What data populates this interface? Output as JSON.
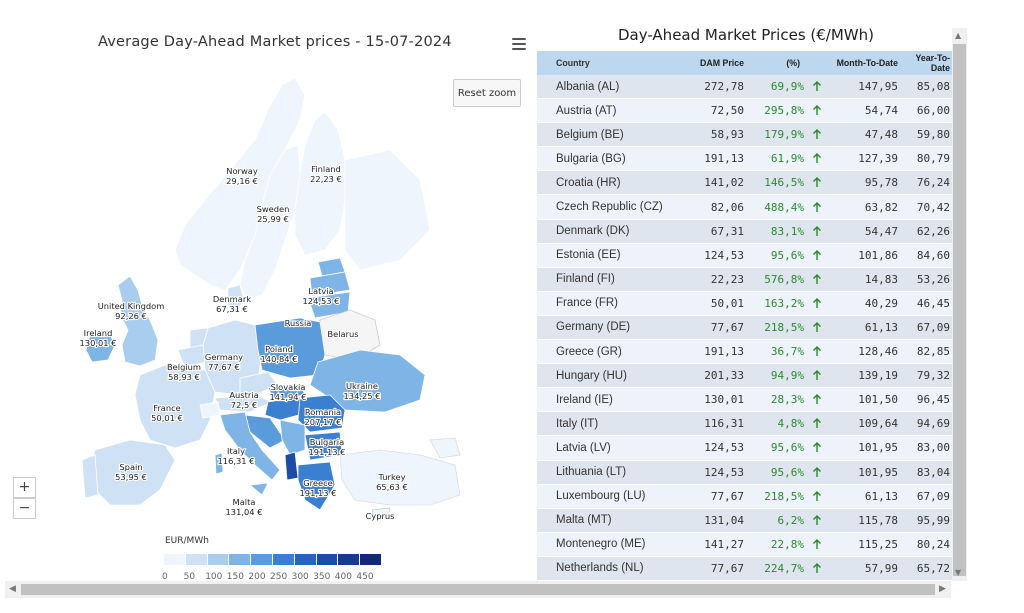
{
  "map": {
    "title": "Average Day-Ahead Market prices - 15-07-2024",
    "reset_zoom": "Reset zoom",
    "zoom_in": "+",
    "zoom_out": "−",
    "legend_title": "EUR/MWh",
    "legend_ticks": [
      "0",
      "50",
      "100",
      "150",
      "200",
      "250",
      "300",
      "350",
      "400",
      "450"
    ],
    "labels": [
      {
        "name": "Norway",
        "value": "29,16 €"
      },
      {
        "name": "Finland",
        "value": "22,23 €"
      },
      {
        "name": "Sweden",
        "value": "25,99 €"
      },
      {
        "name": "Latvia",
        "value": "124,53 €"
      },
      {
        "name": "United Kingdom",
        "value": "92,26 €"
      },
      {
        "name": "Denmark",
        "value": "67,31 €"
      },
      {
        "name": "Russia",
        "value": ""
      },
      {
        "name": "Belarus",
        "value": ""
      },
      {
        "name": "Ireland",
        "value": "130,01 €"
      },
      {
        "name": "Poland",
        "value": "140,84 €"
      },
      {
        "name": "Germany",
        "value": "77,67 €"
      },
      {
        "name": "Belgium",
        "value": "58,93 €"
      },
      {
        "name": "Slovakia",
        "value": "141,94 €"
      },
      {
        "name": "Ukraine",
        "value": "134,25 €"
      },
      {
        "name": "Austria",
        "value": "72,5 €"
      },
      {
        "name": "Romania",
        "value": "207,17 €"
      },
      {
        "name": "France",
        "value": "50,01 €"
      },
      {
        "name": "Bulgaria",
        "value": "191,13 €"
      },
      {
        "name": "Italy",
        "value": "116,31 €"
      },
      {
        "name": "Spain",
        "value": "53,95 €"
      },
      {
        "name": "Turkey",
        "value": "65,63 €"
      },
      {
        "name": "Greece",
        "value": "191,13 €"
      },
      {
        "name": "Malta",
        "value": "131,04 €"
      },
      {
        "name": "Cyprus",
        "value": ""
      }
    ]
  },
  "table": {
    "title": "Day-Ahead Market Prices (€/MWh)",
    "headers": [
      "Country",
      "DAM Price",
      "(%)",
      "Month-To-Date",
      "Year-To-Date"
    ],
    "rows": [
      [
        "Albania (AL)",
        "272,78",
        "69,9%",
        "147,95",
        "85,08"
      ],
      [
        "Austria (AT)",
        "72,50",
        "295,8%",
        "54,74",
        "66,00"
      ],
      [
        "Belgium (BE)",
        "58,93",
        "179,9%",
        "47,48",
        "59,80"
      ],
      [
        "Bulgaria (BG)",
        "191,13",
        "61,9%",
        "127,39",
        "80,79"
      ],
      [
        "Croatia (HR)",
        "141,02",
        "146,5%",
        "95,78",
        "76,24"
      ],
      [
        "Czech Republic (CZ)",
        "82,06",
        "488,4%",
        "63,82",
        "70,42"
      ],
      [
        "Denmark (DK)",
        "67,31",
        "83,1%",
        "54,47",
        "62,26"
      ],
      [
        "Estonia (EE)",
        "124,53",
        "95,6%",
        "101,86",
        "84,60"
      ],
      [
        "Finland (FI)",
        "22,23",
        "576,8%",
        "14,83",
        "53,26"
      ],
      [
        "France (FR)",
        "50,01",
        "163,2%",
        "40,29",
        "46,45"
      ],
      [
        "Germany (DE)",
        "77,67",
        "218,5%",
        "61,13",
        "67,09"
      ],
      [
        "Greece (GR)",
        "191,13",
        "36,7%",
        "128,46",
        "82,85"
      ],
      [
        "Hungary (HU)",
        "201,33",
        "94,9%",
        "139,19",
        "79,32"
      ],
      [
        "Ireland (IE)",
        "130,01",
        "28,3%",
        "101,50",
        "96,45"
      ],
      [
        "Italy (IT)",
        "116,31",
        "4,8%",
        "109,64",
        "94,69"
      ],
      [
        "Latvia (LV)",
        "124,53",
        "95,6%",
        "101,95",
        "83,00"
      ],
      [
        "Lithuania (LT)",
        "124,53",
        "95,6%",
        "101,95",
        "83,04"
      ],
      [
        "Luxembourg (LU)",
        "77,67",
        "218,5%",
        "61,13",
        "67,09"
      ],
      [
        "Malta (MT)",
        "131,04",
        "6,2%",
        "115,78",
        "95,99"
      ],
      [
        "Montenegro (ME)",
        "141,27",
        "22,8%",
        "115,25",
        "80,24"
      ],
      [
        "Netherlands (NL)",
        "77,67",
        "224,7%",
        "57,99",
        "65,72"
      ]
    ]
  },
  "colors": {
    "legend": [
      "#eef5fc",
      "#cfe2f5",
      "#a9cdef",
      "#7fb5e6",
      "#5a9bdc",
      "#3b7fd0",
      "#2764bd",
      "#1b4ca6",
      "#153a8e",
      "#122a76"
    ],
    "up_arrow": "#2a8a2a"
  }
}
